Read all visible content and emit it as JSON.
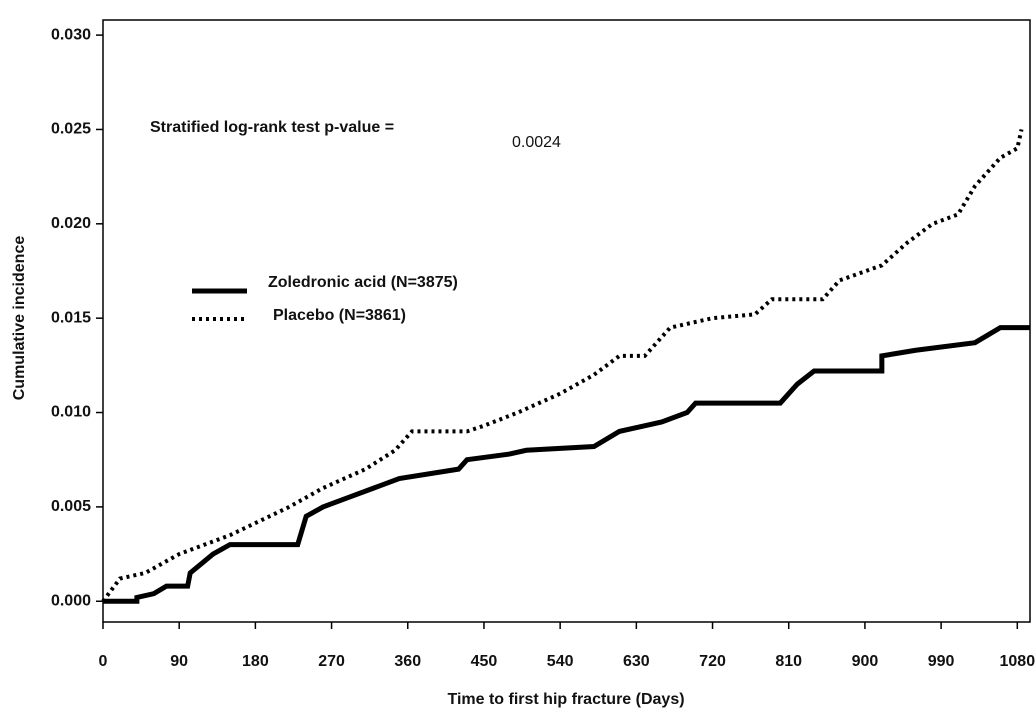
{
  "chart_data": {
    "type": "line",
    "x_label": "Time to first hip fracture (Days)",
    "y_label": "Cumulative incidence",
    "annotation": "Stratified log-rank test p-value =",
    "p_value": "0.0024",
    "xlim": [
      0,
      1095
    ],
    "ylim": [
      -0.0011,
      0.0308
    ],
    "xticks": [
      0,
      90,
      180,
      270,
      360,
      450,
      540,
      630,
      720,
      810,
      900,
      990,
      1080
    ],
    "yticks": [
      {
        "value": 0,
        "label": "0.000"
      },
      {
        "value": 0.005,
        "label": "0.005"
      },
      {
        "value": 0.01,
        "label": "0.010"
      },
      {
        "value": 0.015,
        "label": "0.015"
      },
      {
        "value": 0.02,
        "label": "0.020"
      },
      {
        "value": 0.025,
        "label": "0.025"
      },
      {
        "value": 0.03,
        "label": "0.030"
      }
    ],
    "series": [
      {
        "name": "Zoledronic acid (N=3875)",
        "color": "#000000",
        "style": "solid",
        "x": [
          0,
          40,
          40,
          60,
          75,
          100,
          103,
          130,
          150,
          230,
          240,
          260,
          290,
          320,
          350,
          420,
          430,
          480,
          500,
          580,
          610,
          660,
          690,
          700,
          800,
          820,
          840,
          920,
          920,
          960,
          1030,
          1060,
          1095
        ],
        "values": [
          0,
          0,
          0.0002,
          0.0004,
          0.0008,
          0.0008,
          0.0015,
          0.0025,
          0.003,
          0.003,
          0.0045,
          0.005,
          0.0055,
          0.006,
          0.0065,
          0.007,
          0.0075,
          0.0078,
          0.008,
          0.0082,
          0.009,
          0.0095,
          0.01,
          0.0105,
          0.0105,
          0.0115,
          0.0122,
          0.0122,
          0.013,
          0.0133,
          0.0137,
          0.0145,
          0.0145
        ]
      },
      {
        "name": "Placebo (N=3861)",
        "color": "#000000",
        "style": "dotted",
        "x": [
          0,
          20,
          50,
          90,
          120,
          150,
          220,
          260,
          310,
          345,
          365,
          430,
          450,
          490,
          540,
          580,
          610,
          640,
          670,
          720,
          770,
          790,
          850,
          870,
          920,
          950,
          980,
          1010,
          1030,
          1060,
          1080,
          1085
        ],
        "values": [
          0,
          0.0012,
          0.0015,
          0.0025,
          0.003,
          0.0035,
          0.005,
          0.006,
          0.007,
          0.008,
          0.009,
          0.009,
          0.0093,
          0.01,
          0.011,
          0.012,
          0.013,
          0.013,
          0.0145,
          0.015,
          0.0152,
          0.016,
          0.016,
          0.017,
          0.0178,
          0.019,
          0.02,
          0.0205,
          0.022,
          0.0235,
          0.024,
          0.025
        ]
      }
    ]
  }
}
